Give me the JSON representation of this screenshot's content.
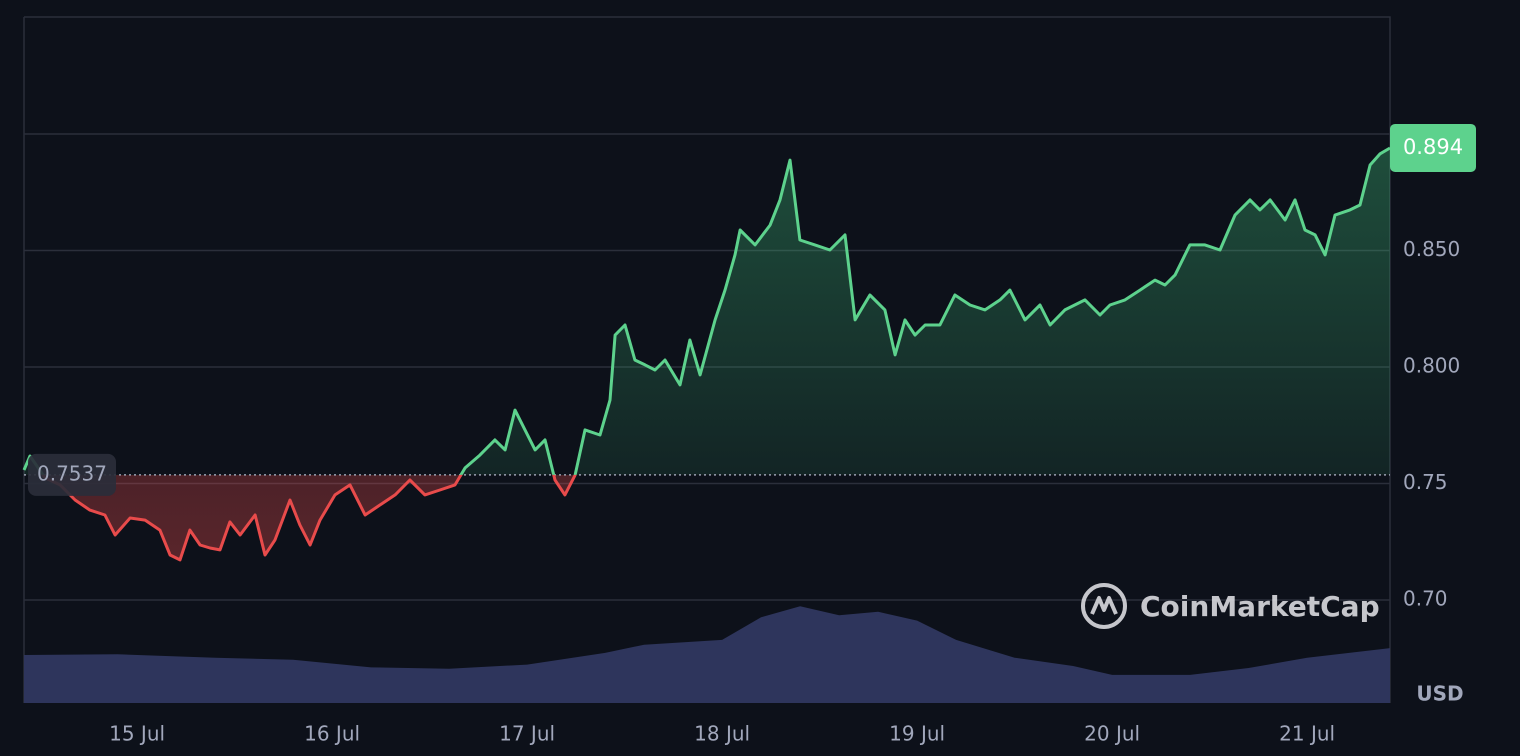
{
  "chart_data": {
    "type": "line",
    "x": [
      14.42,
      14.451,
      14.528,
      14.605,
      14.682,
      14.758,
      14.835,
      14.887,
      14.964,
      15.041,
      15.117,
      15.169,
      15.22,
      15.271,
      15.323,
      15.374,
      15.425,
      15.476,
      15.528,
      15.605,
      15.656,
      15.707,
      15.784,
      15.835,
      15.887,
      15.938,
      16.015,
      16.092,
      16.169,
      16.246,
      16.323,
      16.399,
      16.476,
      16.553,
      16.63,
      16.682,
      16.758,
      16.835,
      16.887,
      16.938,
      16.989,
      17.041,
      17.092,
      17.143,
      17.194,
      17.246,
      17.297,
      17.374,
      17.425,
      17.451,
      17.502,
      17.553,
      17.605,
      17.656,
      17.707,
      17.784,
      17.835,
      17.887,
      17.964,
      18.015,
      18.066,
      18.092,
      18.169,
      18.246,
      18.297,
      18.348,
      18.399,
      18.476,
      18.553,
      18.63,
      18.682,
      18.758,
      18.835,
      18.887,
      18.938,
      18.989,
      19.041,
      19.117,
      19.194,
      19.271,
      19.348,
      19.425,
      19.476,
      19.553,
      19.63,
      19.682,
      19.758,
      19.861,
      19.938,
      19.989,
      20.066,
      20.143,
      20.22,
      20.271,
      20.323,
      20.399,
      20.476,
      20.553,
      20.63,
      20.707,
      20.758,
      20.81,
      20.887,
      20.938,
      20.989,
      21.041,
      21.092,
      21.143,
      21.22,
      21.271,
      21.323,
      21.374,
      21.425
    ],
    "series": [
      {
        "color_up": "#5dd28d",
        "color_down": "#e84b4b",
        "values": [
          0.7558,
          0.7618,
          0.7524,
          0.7494,
          0.7429,
          0.7386,
          0.7365,
          0.7279,
          0.7352,
          0.7343,
          0.73,
          0.7193,
          0.7172,
          0.73,
          0.7236,
          0.7223,
          0.7215,
          0.7335,
          0.7279,
          0.7365,
          0.7193,
          0.7258,
          0.7429,
          0.7322,
          0.7236,
          0.7343,
          0.7451,
          0.7494,
          0.7365,
          0.7408,
          0.7451,
          0.7515,
          0.7451,
          0.7472,
          0.7494,
          0.7567,
          0.7622,
          0.7687,
          0.7644,
          0.7815,
          0.773,
          0.7644,
          0.7687,
          0.7515,
          0.7451,
          0.7536,
          0.773,
          0.7708,
          0.7858,
          0.8137,
          0.818,
          0.803,
          0.8009,
          0.7987,
          0.803,
          0.7923,
          0.8116,
          0.7966,
          0.8202,
          0.833,
          0.8481,
          0.8588,
          0.8524,
          0.8609,
          0.8717,
          0.8888,
          0.8545,
          0.8524,
          0.8502,
          0.8567,
          0.8202,
          0.8309,
          0.8245,
          0.8052,
          0.8202,
          0.8137,
          0.818,
          0.818,
          0.8309,
          0.8266,
          0.8245,
          0.8288,
          0.833,
          0.8202,
          0.8266,
          0.818,
          0.8245,
          0.8288,
          0.8223,
          0.8266,
          0.8288,
          0.833,
          0.8373,
          0.8352,
          0.8395,
          0.8524,
          0.8524,
          0.8502,
          0.8652,
          0.8717,
          0.8674,
          0.8717,
          0.8631,
          0.8717,
          0.8588,
          0.8567,
          0.8481,
          0.8652,
          0.8674,
          0.8695,
          0.8867,
          0.8915,
          0.894
        ]
      }
    ],
    "baseline": {
      "value": 0.7537,
      "label": "0.7537"
    },
    "last_price": {
      "value": 0.894,
      "label": "0.894"
    },
    "xlim": [
      14.42,
      21.425
    ],
    "xticks": [
      {
        "value": 15,
        "label": "15 Jul"
      },
      {
        "value": 16,
        "label": "16 Jul"
      },
      {
        "value": 17,
        "label": "17 Jul"
      },
      {
        "value": 18,
        "label": "18 Jul"
      },
      {
        "value": 19,
        "label": "19 Jul"
      },
      {
        "value": 20,
        "label": "20 Jul"
      },
      {
        "value": 21,
        "label": "21 Jul"
      }
    ],
    "ylim": [
      0.6558,
      0.9502
    ],
    "yticks": [
      {
        "value": 0.7,
        "label": "0.70"
      },
      {
        "value": 0.75,
        "label": "0.75"
      },
      {
        "value": 0.8,
        "label": "0.800"
      },
      {
        "value": 0.85,
        "label": "0.850"
      }
    ],
    "extra_grid": [
      0.9
    ],
    "grid": true,
    "y2lim": [
      0,
      100
    ],
    "volume": {
      "axis": "y2",
      "color": "#2e355c",
      "x": [
        14.42,
        14.9,
        15.4,
        15.8,
        16.2,
        16.6,
        17.0,
        17.4,
        17.6,
        18.0,
        18.2,
        18.4,
        18.6,
        18.8,
        19.0,
        19.2,
        19.5,
        19.8,
        20.0,
        20.4,
        20.7,
        21.0,
        21.425
      ],
      "values": [
        7.0,
        7.1,
        6.6,
        6.3,
        5.2,
        5.0,
        5.6,
        7.3,
        8.5,
        9.2,
        12.5,
        14.1,
        12.8,
        13.3,
        12.0,
        9.2,
        6.6,
        5.4,
        4.1,
        4.1,
        5.1,
        6.6,
        8.0
      ]
    },
    "unit": "USD",
    "watermark": "CoinMarketCap"
  }
}
